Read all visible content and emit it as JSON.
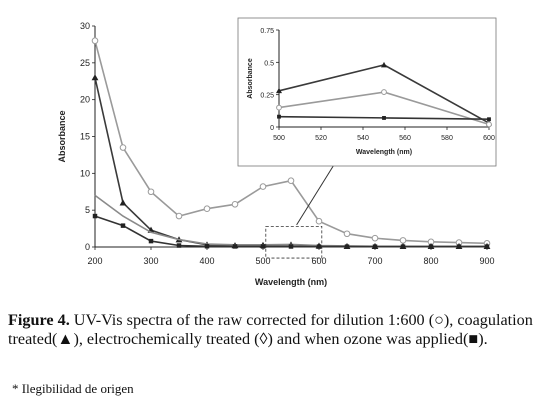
{
  "caption": {
    "label": "Figure 4.",
    "text": " UV-Vis spectra of the raw corrected for dilution 1:600 (○), coagulation treated(▲), electrochemically treated (◊) and when ozone was applied(■)."
  },
  "note": "* Ilegibilidad de origen",
  "chart_data": [
    {
      "type": "line",
      "title": "",
      "xlabel": "Wavelength (nm)",
      "ylabel": "Absorbance",
      "xlim": [
        200,
        900
      ],
      "ylim": [
        0,
        30
      ],
      "xticks": [
        "200",
        "300",
        "400",
        "500",
        "600",
        "700",
        "800",
        "900"
      ],
      "yticks": [
        "0",
        "5",
        "10",
        "15",
        "20",
        "25",
        "30"
      ],
      "grid": false,
      "legend": "none",
      "series": [
        {
          "marker": "circle",
          "color": "#9a9a9a",
          "x": [
            200,
            250,
            300,
            350,
            400,
            450,
            500,
            550,
            600,
            650,
            700,
            750,
            800,
            850,
            900
          ],
          "y": [
            28,
            13.5,
            7.5,
            4.2,
            5.2,
            5.8,
            8.2,
            9.0,
            3.5,
            1.8,
            1.2,
            0.9,
            0.7,
            0.6,
            0.5
          ]
        },
        {
          "marker": "triangle",
          "color": "#3a3a3a",
          "x": [
            200,
            250,
            300,
            350,
            400,
            450,
            500,
            550,
            600,
            650,
            700,
            750,
            800,
            850,
            900
          ],
          "y": [
            23,
            6.0,
            2.3,
            1.0,
            0.3,
            0.2,
            0.25,
            0.3,
            0.15,
            0.1,
            0.1,
            0.1,
            0.1,
            0.1,
            0.1
          ]
        },
        {
          "marker": "none",
          "color": "#8a8a8a",
          "x": [
            200,
            250,
            300,
            350,
            400,
            450,
            500,
            550,
            600,
            650,
            700,
            750,
            800,
            850,
            900
          ],
          "y": [
            7.0,
            4.2,
            2.0,
            1.0,
            0.4,
            0.3,
            0.3,
            0.35,
            0.2,
            0.15,
            0.1,
            0.1,
            0.1,
            0.1,
            0.1
          ]
        },
        {
          "marker": "square",
          "color": "#333333",
          "x": [
            200,
            250,
            300,
            350,
            400,
            450,
            500,
            550,
            600,
            650,
            700,
            750,
            800,
            850,
            900
          ],
          "y": [
            4.2,
            2.9,
            0.8,
            0.2,
            0.1,
            0.08,
            0.08,
            0.07,
            0.06,
            0.05,
            0.05,
            0.05,
            0.05,
            0.05,
            0.05
          ]
        }
      ],
      "annotations": [
        {
          "type": "dashed-box",
          "x": [
            505,
            605
          ],
          "y": [
            -1.5,
            2.8
          ]
        },
        {
          "type": "arrow",
          "from": [
            560,
            3.0
          ],
          "to": [
            650,
            14.0
          ]
        }
      ]
    },
    {
      "type": "line",
      "title": "",
      "xlabel": "Wavelength (nm)",
      "ylabel": "Absorbance",
      "xlim": [
        500,
        600
      ],
      "ylim": [
        0,
        0.75
      ],
      "xticks": [
        "500",
        "520",
        "540",
        "560",
        "580",
        "600"
      ],
      "yticks": [
        "0",
        "0.25",
        "0.5",
        "0.75"
      ],
      "grid": false,
      "legend": "none",
      "series": [
        {
          "marker": "triangle",
          "color": "#3a3a3a",
          "x": [
            500,
            550,
            600
          ],
          "y": [
            0.28,
            0.48,
            0.03
          ]
        },
        {
          "marker": "circle",
          "color": "#9a9a9a",
          "x": [
            500,
            550,
            600
          ],
          "y": [
            0.15,
            0.27,
            0.02
          ]
        },
        {
          "marker": "square",
          "color": "#333333",
          "x": [
            500,
            550,
            600
          ],
          "y": [
            0.08,
            0.07,
            0.06
          ]
        }
      ]
    }
  ]
}
